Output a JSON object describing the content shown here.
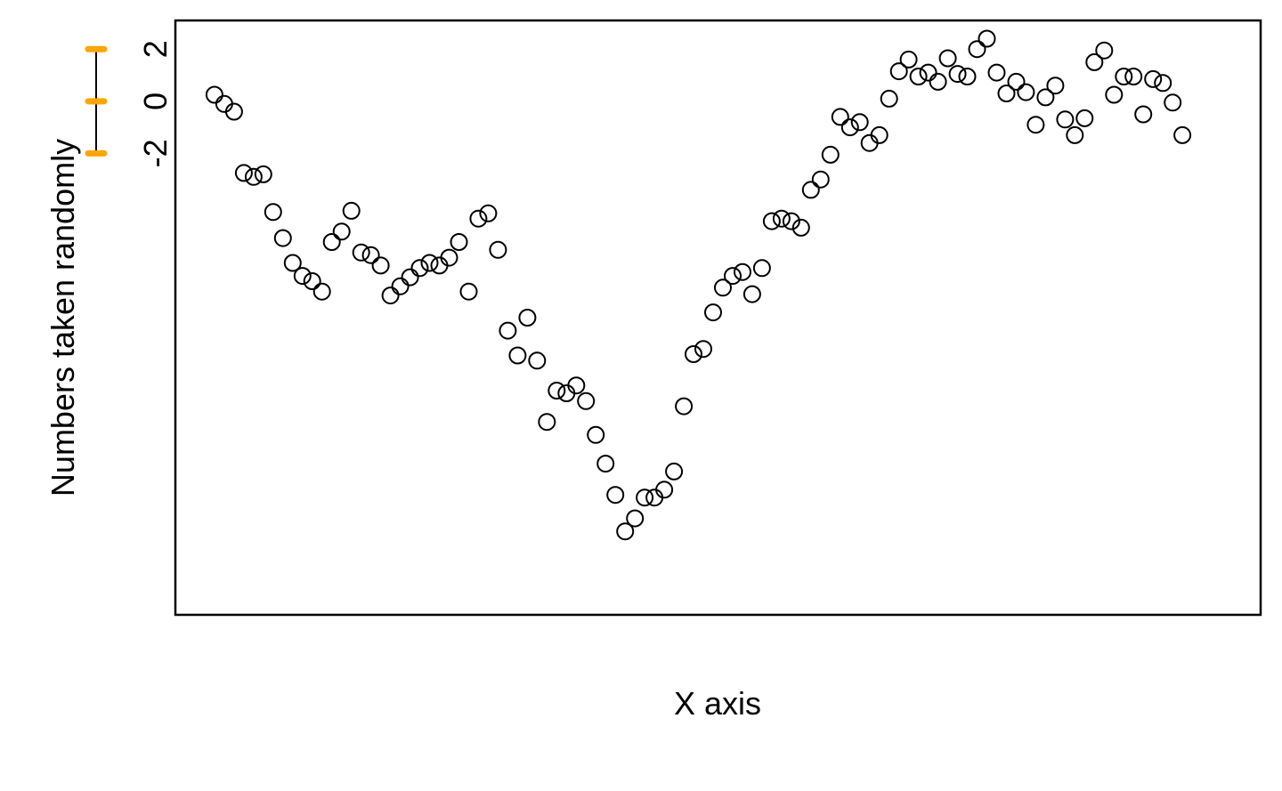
{
  "chart_data": {
    "type": "scatter",
    "title": "",
    "xlabel": "X axis",
    "ylabel": "Numbers taken randomly",
    "x_ticks_shown": false,
    "y_tick_labels": [
      "2",
      "0",
      "-2"
    ],
    "y_ticks": [
      2,
      0,
      -2
    ],
    "ylim": [
      -19.7,
      3.1
    ],
    "xlim": [
      -3,
      108
    ],
    "grid": false,
    "legend": "none",
    "point_color": "#000000",
    "axis_color": "#000000",
    "tick_accent_color": "#FFA500",
    "points": [
      {
        "x": 1,
        "y": 0.25
      },
      {
        "x": 2,
        "y": -0.1
      },
      {
        "x": 3,
        "y": -0.4
      },
      {
        "x": 4,
        "y": -2.75
      },
      {
        "x": 5,
        "y": -2.9
      },
      {
        "x": 6,
        "y": -2.8
      },
      {
        "x": 7,
        "y": -4.25
      },
      {
        "x": 8,
        "y": -5.25
      },
      {
        "x": 9,
        "y": -6.2
      },
      {
        "x": 10,
        "y": -6.7
      },
      {
        "x": 11,
        "y": -6.9
      },
      {
        "x": 12,
        "y": -7.3
      },
      {
        "x": 13,
        "y": -5.4
      },
      {
        "x": 14,
        "y": -5.0
      },
      {
        "x": 15,
        "y": -4.2
      },
      {
        "x": 16,
        "y": -5.8
      },
      {
        "x": 17,
        "y": -5.9
      },
      {
        "x": 18,
        "y": -6.3
      },
      {
        "x": 19,
        "y": -7.45
      },
      {
        "x": 20,
        "y": -7.1
      },
      {
        "x": 21,
        "y": -6.75
      },
      {
        "x": 22,
        "y": -6.4
      },
      {
        "x": 23,
        "y": -6.2
      },
      {
        "x": 24,
        "y": -6.3
      },
      {
        "x": 25,
        "y": -6.0
      },
      {
        "x": 26,
        "y": -5.4
      },
      {
        "x": 27,
        "y": -7.3
      },
      {
        "x": 28,
        "y": -4.5
      },
      {
        "x": 29,
        "y": -4.3
      },
      {
        "x": 30,
        "y": -5.7
      },
      {
        "x": 31,
        "y": -8.8
      },
      {
        "x": 32,
        "y": -9.75
      },
      {
        "x": 33,
        "y": -8.3
      },
      {
        "x": 34,
        "y": -9.95
      },
      {
        "x": 35,
        "y": -12.3
      },
      {
        "x": 36,
        "y": -11.1
      },
      {
        "x": 37,
        "y": -11.2
      },
      {
        "x": 38,
        "y": -10.9
      },
      {
        "x": 39,
        "y": -11.5
      },
      {
        "x": 40,
        "y": -12.8
      },
      {
        "x": 41,
        "y": -13.9
      },
      {
        "x": 42,
        "y": -15.1
      },
      {
        "x": 43,
        "y": -16.5
      },
      {
        "x": 44,
        "y": -16.0
      },
      {
        "x": 45,
        "y": -15.2
      },
      {
        "x": 46,
        "y": -15.2
      },
      {
        "x": 47,
        "y": -14.9
      },
      {
        "x": 48,
        "y": -14.2
      },
      {
        "x": 49,
        "y": -11.7
      },
      {
        "x": 50,
        "y": -9.7
      },
      {
        "x": 51,
        "y": -9.5
      },
      {
        "x": 52,
        "y": -8.1
      },
      {
        "x": 53,
        "y": -7.15
      },
      {
        "x": 54,
        "y": -6.7
      },
      {
        "x": 55,
        "y": -6.55
      },
      {
        "x": 56,
        "y": -7.4
      },
      {
        "x": 57,
        "y": -6.4
      },
      {
        "x": 58,
        "y": -4.6
      },
      {
        "x": 59,
        "y": -4.5
      },
      {
        "x": 60,
        "y": -4.6
      },
      {
        "x": 61,
        "y": -4.85
      },
      {
        "x": 62,
        "y": -3.4
      },
      {
        "x": 63,
        "y": -3.0
      },
      {
        "x": 64,
        "y": -2.05
      },
      {
        "x": 65,
        "y": -0.6
      },
      {
        "x": 66,
        "y": -1.0
      },
      {
        "x": 67,
        "y": -0.8
      },
      {
        "x": 68,
        "y": -1.6
      },
      {
        "x": 69,
        "y": -1.3
      },
      {
        "x": 70,
        "y": 0.1
      },
      {
        "x": 71,
        "y": 1.15
      },
      {
        "x": 72,
        "y": 1.6
      },
      {
        "x": 73,
        "y": 0.95
      },
      {
        "x": 74,
        "y": 1.1
      },
      {
        "x": 75,
        "y": 0.75
      },
      {
        "x": 76,
        "y": 1.65
      },
      {
        "x": 77,
        "y": 1.05
      },
      {
        "x": 78,
        "y": 0.95
      },
      {
        "x": 79,
        "y": 2.0
      },
      {
        "x": 80,
        "y": 2.4
      },
      {
        "x": 81,
        "y": 1.1
      },
      {
        "x": 82,
        "y": 0.3
      },
      {
        "x": 83,
        "y": 0.75
      },
      {
        "x": 84,
        "y": 0.35
      },
      {
        "x": 85,
        "y": -0.9
      },
      {
        "x": 86,
        "y": 0.15
      },
      {
        "x": 87,
        "y": 0.6
      },
      {
        "x": 88,
        "y": -0.7
      },
      {
        "x": 89,
        "y": -1.3
      },
      {
        "x": 90,
        "y": -0.65
      },
      {
        "x": 91,
        "y": 1.5
      },
      {
        "x": 92,
        "y": 1.95
      },
      {
        "x": 93,
        "y": 0.25
      },
      {
        "x": 94,
        "y": 0.95
      },
      {
        "x": 95,
        "y": 0.95
      },
      {
        "x": 96,
        "y": -0.5
      },
      {
        "x": 97,
        "y": 0.85
      },
      {
        "x": 98,
        "y": 0.7
      },
      {
        "x": 99,
        "y": -0.05
      },
      {
        "x": 100,
        "y": -1.3
      }
    ]
  }
}
